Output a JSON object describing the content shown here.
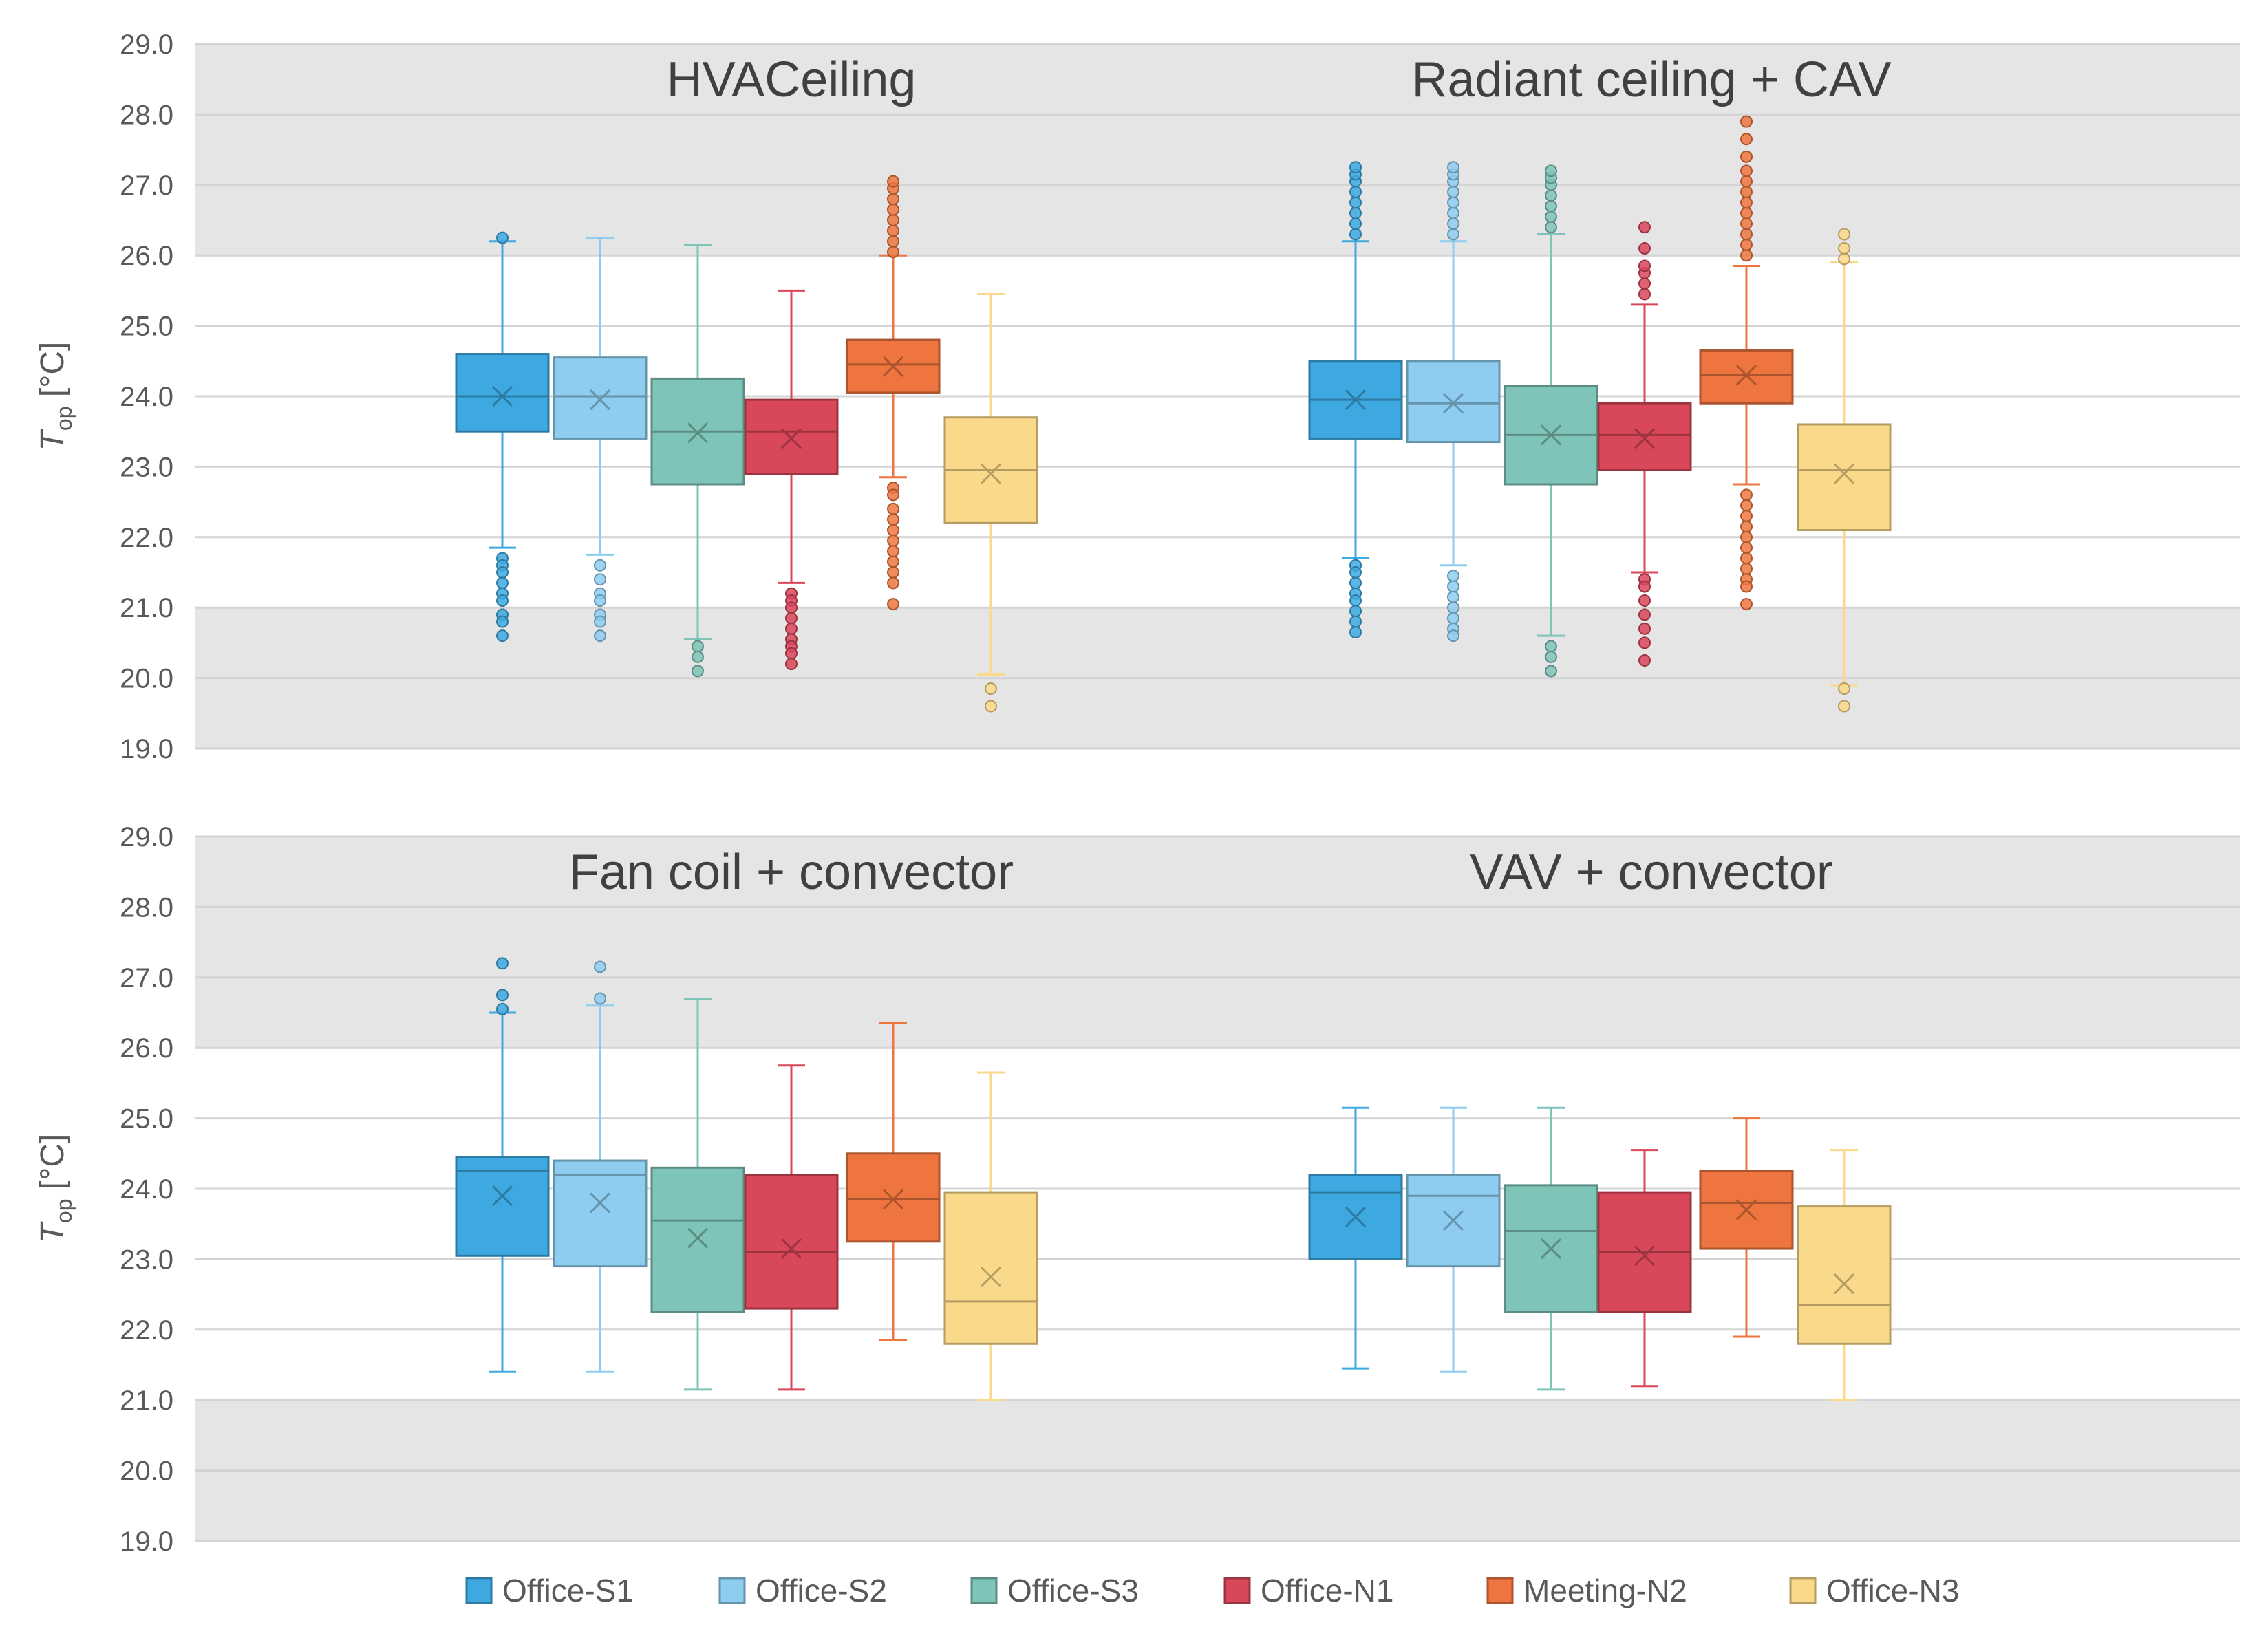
{
  "legend": {
    "items": [
      {
        "name": "Office-S1",
        "color": "#3da9e0"
      },
      {
        "name": "Office-S2",
        "color": "#8ecdf0"
      },
      {
        "name": "Office-S3",
        "color": "#7fc4b8"
      },
      {
        "name": "Office-N1",
        "color": "#d9475a"
      },
      {
        "name": "Meeting-N2",
        "color": "#ee7540"
      },
      {
        "name": "Office-N3",
        "color": "#fbd98a"
      }
    ]
  },
  "y_axis": {
    "label_main": "T",
    "label_sub": "op",
    "label_unit": " [°C]",
    "ticks": [
      "19.0",
      "20.0",
      "21.0",
      "22.0",
      "23.0",
      "24.0",
      "25.0",
      "26.0",
      "27.0",
      "28.0",
      "29.0"
    ]
  },
  "chart_data": [
    {
      "type": "box",
      "title": "HVACeiling",
      "ylim": [
        19,
        29
      ],
      "comfort_band": [
        21,
        26
      ],
      "groups": [
        {
          "title": "HVACeiling",
          "boxes": [
            {
              "name": "Office-S1",
              "q1": 23.5,
              "median": 24.0,
              "q3": 24.6,
              "mean": 24.0,
              "whisker_low": 21.85,
              "whisker_high": 26.2,
              "outliers": [
                21.7,
                21.6,
                21.5,
                21.35,
                21.2,
                21.1,
                20.9,
                20.8,
                20.6,
                26.25
              ]
            },
            {
              "name": "Office-S2",
              "q1": 23.4,
              "median": 24.0,
              "q3": 24.55,
              "mean": 23.95,
              "whisker_low": 21.75,
              "whisker_high": 26.25,
              "outliers": [
                21.6,
                21.4,
                21.2,
                21.1,
                20.9,
                20.8,
                20.6
              ]
            },
            {
              "name": "Office-S3",
              "q1": 22.75,
              "median": 23.5,
              "q3": 24.25,
              "mean": 23.48,
              "whisker_low": 20.55,
              "whisker_high": 26.15,
              "outliers": [
                20.45,
                20.3,
                20.1
              ]
            },
            {
              "name": "Office-N1",
              "q1": 22.9,
              "median": 23.5,
              "q3": 23.95,
              "mean": 23.4,
              "whisker_low": 21.35,
              "whisker_high": 25.5,
              "outliers": [
                21.2,
                21.1,
                21.0,
                20.85,
                20.7,
                20.55,
                20.45,
                20.35,
                20.2
              ]
            },
            {
              "name": "Meeting-N2",
              "q1": 24.05,
              "median": 24.45,
              "q3": 24.8,
              "mean": 24.42,
              "whisker_low": 22.85,
              "whisker_high": 26.0,
              "outliers": [
                22.7,
                22.6,
                22.4,
                22.25,
                22.1,
                21.95,
                21.8,
                21.65,
                21.5,
                21.35,
                21.05,
                26.05,
                26.2,
                26.35,
                26.5,
                26.65,
                26.8,
                26.95,
                27.05
              ]
            },
            {
              "name": "Office-N3",
              "q1": 22.2,
              "median": 22.95,
              "q3": 23.7,
              "mean": 22.9,
              "whisker_low": 20.05,
              "whisker_high": 25.45,
              "outliers": [
                19.85,
                19.6
              ]
            }
          ]
        },
        {
          "title": "Radiant ceiling + CAV",
          "boxes": [
            {
              "name": "Office-S1",
              "q1": 23.4,
              "median": 23.95,
              "q3": 24.5,
              "mean": 23.95,
              "whisker_low": 21.7,
              "whisker_high": 26.2,
              "outliers": [
                21.6,
                21.5,
                21.35,
                21.2,
                21.1,
                20.95,
                20.8,
                20.65,
                26.3,
                26.45,
                26.6,
                26.75,
                26.9,
                27.05,
                27.15,
                27.25
              ]
            },
            {
              "name": "Office-S2",
              "q1": 23.35,
              "median": 23.9,
              "q3": 24.5,
              "mean": 23.9,
              "whisker_low": 21.6,
              "whisker_high": 26.2,
              "outliers": [
                21.45,
                21.3,
                21.15,
                21.0,
                20.85,
                20.7,
                20.6,
                26.3,
                26.45,
                26.6,
                26.75,
                26.9,
                27.05,
                27.15,
                27.25
              ]
            },
            {
              "name": "Office-S3",
              "q1": 22.75,
              "median": 23.45,
              "q3": 24.15,
              "mean": 23.45,
              "whisker_low": 20.6,
              "whisker_high": 26.3,
              "outliers": [
                20.45,
                20.3,
                20.1,
                26.4,
                26.55,
                26.7,
                26.85,
                27.0,
                27.1,
                27.2
              ]
            },
            {
              "name": "Office-N1",
              "q1": 22.95,
              "median": 23.45,
              "q3": 23.9,
              "mean": 23.4,
              "whisker_low": 21.5,
              "whisker_high": 25.3,
              "outliers": [
                21.4,
                21.3,
                21.1,
                20.9,
                20.7,
                20.5,
                20.25,
                25.45,
                25.6,
                25.75,
                25.85,
                26.1,
                26.4
              ]
            },
            {
              "name": "Meeting-N2",
              "q1": 23.9,
              "median": 24.3,
              "q3": 24.65,
              "mean": 24.3,
              "whisker_low": 22.75,
              "whisker_high": 25.85,
              "outliers": [
                22.6,
                22.45,
                22.3,
                22.15,
                22.0,
                21.85,
                21.7,
                21.55,
                21.4,
                21.3,
                21.05,
                26.0,
                26.15,
                26.3,
                26.45,
                26.6,
                26.75,
                26.9,
                27.05,
                27.2,
                27.4,
                27.65,
                27.9
              ]
            },
            {
              "name": "Office-N3",
              "q1": 22.1,
              "median": 22.95,
              "q3": 23.6,
              "mean": 22.9,
              "whisker_low": 19.9,
              "whisker_high": 25.9,
              "outliers": [
                19.85,
                19.6,
                25.95,
                26.1,
                26.3
              ]
            }
          ]
        }
      ]
    },
    {
      "type": "box",
      "title": "Fan coil + convector",
      "ylim": [
        19,
        29
      ],
      "comfort_band": [
        21,
        26
      ],
      "groups": [
        {
          "title": "Fan coil + convector",
          "boxes": [
            {
              "name": "Office-S1",
              "q1": 23.05,
              "median": 24.25,
              "q3": 24.45,
              "mean": 23.9,
              "whisker_low": 21.4,
              "whisker_high": 26.5,
              "outliers": [
                26.55,
                26.75,
                27.2
              ]
            },
            {
              "name": "Office-S2",
              "q1": 22.9,
              "median": 24.2,
              "q3": 24.4,
              "mean": 23.8,
              "whisker_low": 21.4,
              "whisker_high": 26.6,
              "outliers": [
                26.7,
                27.15
              ]
            },
            {
              "name": "Office-S3",
              "q1": 22.25,
              "median": 23.55,
              "q3": 24.3,
              "mean": 23.3,
              "whisker_low": 21.15,
              "whisker_high": 26.7,
              "outliers": []
            },
            {
              "name": "Office-N1",
              "q1": 22.3,
              "median": 23.1,
              "q3": 24.2,
              "mean": 23.15,
              "whisker_low": 21.15,
              "whisker_high": 25.75,
              "outliers": []
            },
            {
              "name": "Meeting-N2",
              "q1": 23.25,
              "median": 23.85,
              "q3": 24.5,
              "mean": 23.85,
              "whisker_low": 21.85,
              "whisker_high": 26.35,
              "outliers": []
            },
            {
              "name": "Office-N3",
              "q1": 21.8,
              "median": 22.4,
              "q3": 23.95,
              "mean": 22.75,
              "whisker_low": 21.0,
              "whisker_high": 25.65,
              "outliers": []
            }
          ]
        },
        {
          "title": "VAV + convector",
          "boxes": [
            {
              "name": "Office-S1",
              "q1": 23.0,
              "median": 23.95,
              "q3": 24.2,
              "mean": 23.6,
              "whisker_low": 21.45,
              "whisker_high": 25.15,
              "outliers": []
            },
            {
              "name": "Office-S2",
              "q1": 22.9,
              "median": 23.9,
              "q3": 24.2,
              "mean": 23.55,
              "whisker_low": 21.4,
              "whisker_high": 25.15,
              "outliers": []
            },
            {
              "name": "Office-S3",
              "q1": 22.25,
              "median": 23.4,
              "q3": 24.05,
              "mean": 23.15,
              "whisker_low": 21.15,
              "whisker_high": 25.15,
              "outliers": []
            },
            {
              "name": "Office-N1",
              "q1": 22.25,
              "median": 23.1,
              "q3": 23.95,
              "mean": 23.05,
              "whisker_low": 21.2,
              "whisker_high": 24.55,
              "outliers": []
            },
            {
              "name": "Meeting-N2",
              "q1": 23.15,
              "median": 23.8,
              "q3": 24.25,
              "mean": 23.7,
              "whisker_low": 21.9,
              "whisker_high": 25.0,
              "outliers": []
            },
            {
              "name": "Office-N3",
              "q1": 21.8,
              "median": 22.35,
              "q3": 23.75,
              "mean": 22.65,
              "whisker_low": 21.0,
              "whisker_high": 24.55,
              "outliers": []
            }
          ]
        }
      ]
    }
  ]
}
